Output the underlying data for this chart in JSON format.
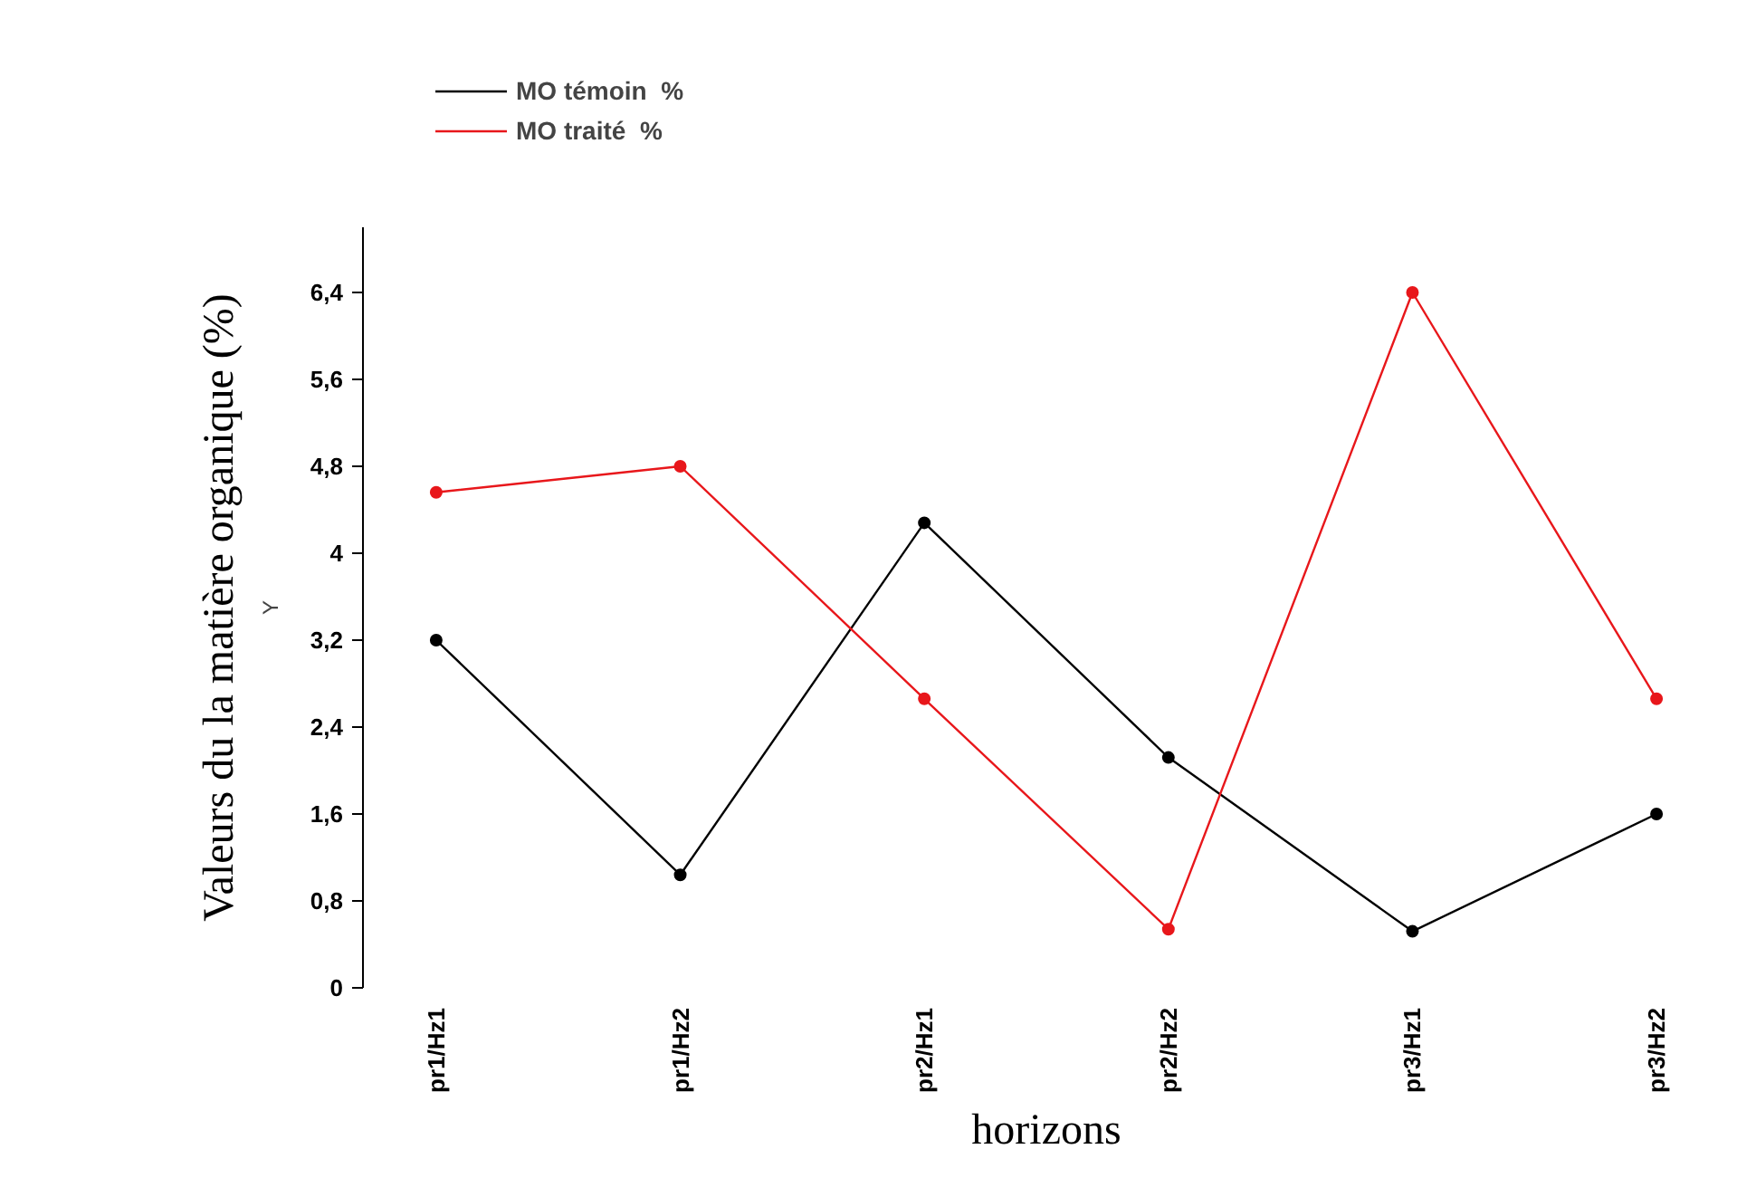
{
  "chart_data": {
    "type": "line",
    "xlabel": "horizons",
    "ylabel": "Valeurs du la matière organique (%)",
    "annotations": [
      "Y"
    ],
    "categories": [
      "pr1/Hz1",
      "pr1/Hz2",
      "pr2/Hz1",
      "pr2/Hz2",
      "pr3/Hz1",
      "pr3/Hz2"
    ],
    "series": [
      {
        "name": "MO témoin  %",
        "color": "#000000",
        "values": [
          3.2,
          1.04,
          4.28,
          2.12,
          0.52,
          1.6
        ]
      },
      {
        "name": "MO traité  %",
        "color": "#e8171b",
        "values": [
          4.56,
          4.8,
          2.66,
          0.54,
          6.4,
          2.66
        ]
      }
    ],
    "ylim": [
      0,
      7
    ],
    "yticks": [
      {
        "value": 0,
        "label": "0"
      },
      {
        "value": 0.8,
        "label": "0,8"
      },
      {
        "value": 1.6,
        "label": "1,6"
      },
      {
        "value": 2.4,
        "label": "2,4"
      },
      {
        "value": 3.2,
        "label": "3,2"
      },
      {
        "value": 4,
        "label": "4"
      },
      {
        "value": 4.8,
        "label": "4,8"
      },
      {
        "value": 5.6,
        "label": "5,6"
      },
      {
        "value": 6.4,
        "label": "6,4"
      }
    ],
    "grid": false,
    "legend": "top left",
    "marker": "circle",
    "line_style": "solid"
  }
}
